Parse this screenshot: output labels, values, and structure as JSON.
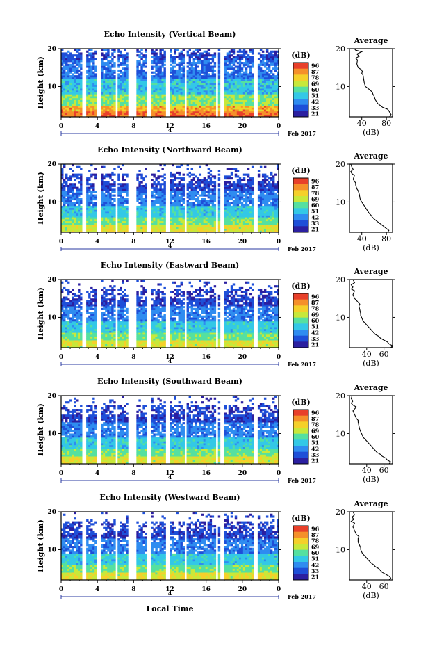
{
  "chart_data": {
    "type": "heatmap",
    "xlabel_shared": "Local Time",
    "date_label": "Feb 2017",
    "date_day": "4",
    "x_ticks": [
      "0",
      "4",
      "8",
      "12",
      "16",
      "20",
      "0"
    ],
    "y_ticks": [
      "10",
      "20"
    ],
    "ylabel": "Height (km)",
    "ylim": [
      2,
      20
    ],
    "xlim": [
      0,
      24
    ],
    "colorbar_unit": "(dB)",
    "avg_title": "Average",
    "avg_xlabel": "(dB)",
    "avg_y_ticks": [
      "10",
      "20"
    ],
    "colors": [
      "#2b1fa0",
      "#1e4fd8",
      "#2f8cf0",
      "#33c8e6",
      "#55e0a0",
      "#c8e83a",
      "#f5d02a",
      "#f5902a",
      "#e8402a"
    ],
    "data_gaps_hours": [
      [
        2.3,
        2.7
      ],
      [
        3.9,
        4.3
      ],
      [
        5.9,
        6.2
      ],
      [
        7.5,
        8.3
      ],
      [
        9.5,
        9.9
      ],
      [
        11.5,
        11.9
      ],
      [
        13.6,
        13.9
      ],
      [
        17.0,
        17.3
      ],
      [
        17.6,
        17.9
      ],
      [
        21.3,
        21.6
      ]
    ],
    "panels": [
      {
        "title": "Echo Intensity (Vertical Beam)",
        "cb_ticks": [
          "96",
          "87",
          "78",
          "69",
          "60",
          "51",
          "42",
          "33",
          "21"
        ],
        "avg_xticks": [
          "40",
          "80"
        ],
        "avg_xlim": [
          20,
          90
        ],
        "avg_profile": [
          [
            85,
            2
          ],
          [
            88,
            2.5
          ],
          [
            86,
            3
          ],
          [
            84,
            3.6
          ],
          [
            82,
            4
          ],
          [
            74,
            4.5
          ],
          [
            70,
            5
          ],
          [
            66,
            5.5
          ],
          [
            64,
            6
          ],
          [
            62,
            6.5
          ],
          [
            61,
            7
          ],
          [
            60,
            7.5
          ],
          [
            58,
            8
          ],
          [
            57,
            8.5
          ],
          [
            54,
            9
          ],
          [
            50,
            9.5
          ],
          [
            46,
            10
          ],
          [
            45,
            10.5
          ],
          [
            44,
            11
          ],
          [
            43,
            12
          ],
          [
            42,
            13
          ],
          [
            40,
            13.5
          ],
          [
            41,
            14
          ],
          [
            39,
            14.5
          ],
          [
            34,
            15
          ],
          [
            32,
            16
          ],
          [
            33,
            17
          ],
          [
            30,
            17.5
          ],
          [
            36,
            18
          ],
          [
            32,
            18.6
          ],
          [
            40,
            19.2
          ],
          [
            30,
            19.6
          ],
          [
            28,
            20
          ]
        ],
        "field": "vertical"
      },
      {
        "title": "Echo Intensity (Northward Beam)",
        "cb_ticks": [
          "96",
          "87",
          "78",
          "69",
          "60",
          "51",
          "42",
          "33",
          "21"
        ],
        "avg_xticks": [
          "40",
          "80"
        ],
        "avg_xlim": [
          20,
          90
        ],
        "avg_profile": [
          [
            82,
            2
          ],
          [
            84,
            2.5
          ],
          [
            80,
            3
          ],
          [
            76,
            3.5
          ],
          [
            72,
            4
          ],
          [
            68,
            4.5
          ],
          [
            64,
            5
          ],
          [
            60,
            5.5
          ],
          [
            57,
            6
          ],
          [
            55,
            6.5
          ],
          [
            52,
            7
          ],
          [
            50,
            7.5
          ],
          [
            48,
            8
          ],
          [
            46,
            8.5
          ],
          [
            44,
            9
          ],
          [
            42,
            9.5
          ],
          [
            40,
            10
          ],
          [
            38,
            10.5
          ],
          [
            37,
            11
          ],
          [
            36,
            12
          ],
          [
            34,
            13
          ],
          [
            32,
            13.5
          ],
          [
            31,
            14
          ],
          [
            30,
            14.5
          ],
          [
            30,
            15
          ],
          [
            26,
            16
          ],
          [
            28,
            17
          ],
          [
            24,
            17.5
          ],
          [
            22,
            18
          ],
          [
            26,
            18.6
          ],
          [
            24,
            19.2
          ],
          [
            22,
            20
          ]
        ],
        "field": "oblique"
      },
      {
        "title": "Echo Intensity (Eastward Beam)",
        "cb_ticks": [
          "96",
          "87",
          "78",
          "69",
          "60",
          "51",
          "42",
          "33",
          "21"
        ],
        "avg_xticks": [
          "40",
          "60"
        ],
        "avg_xlim": [
          20,
          70
        ],
        "avg_profile": [
          [
            68,
            2
          ],
          [
            70,
            2.5
          ],
          [
            66,
            3
          ],
          [
            64,
            3.5
          ],
          [
            60,
            4
          ],
          [
            56,
            4.5
          ],
          [
            54,
            5
          ],
          [
            50,
            5.5
          ],
          [
            48,
            6
          ],
          [
            46,
            6.5
          ],
          [
            44,
            7
          ],
          [
            42,
            7.5
          ],
          [
            40,
            8
          ],
          [
            38,
            8.5
          ],
          [
            36,
            9
          ],
          [
            35,
            9.5
          ],
          [
            34,
            10
          ],
          [
            33,
            10.5
          ],
          [
            33,
            11
          ],
          [
            32,
            12
          ],
          [
            31,
            13
          ],
          [
            32,
            13.5
          ],
          [
            30,
            14
          ],
          [
            28,
            14.5
          ],
          [
            26,
            15
          ],
          [
            24,
            16
          ],
          [
            26,
            17
          ],
          [
            22,
            17.5
          ],
          [
            24,
            18
          ],
          [
            22,
            18.6
          ],
          [
            26,
            19.2
          ],
          [
            24,
            20
          ]
        ],
        "field": "oblique"
      },
      {
        "title": "Echo Intensity (Southward Beam)",
        "cb_ticks": [
          "96",
          "87",
          "78",
          "69",
          "60",
          "51",
          "42",
          "33",
          "21"
        ],
        "avg_xticks": [
          "40",
          "60"
        ],
        "avg_xlim": [
          20,
          70
        ],
        "avg_profile": [
          [
            66,
            2
          ],
          [
            68,
            2.5
          ],
          [
            64,
            3
          ],
          [
            62,
            3.5
          ],
          [
            58,
            4
          ],
          [
            56,
            4.5
          ],
          [
            52,
            5
          ],
          [
            50,
            5.5
          ],
          [
            48,
            6
          ],
          [
            46,
            6.5
          ],
          [
            44,
            7
          ],
          [
            42,
            7.5
          ],
          [
            40,
            8
          ],
          [
            38,
            8.5
          ],
          [
            36,
            9
          ],
          [
            35,
            9.5
          ],
          [
            34,
            10
          ],
          [
            33,
            10.5
          ],
          [
            32,
            11
          ],
          [
            31,
            12
          ],
          [
            30,
            13
          ],
          [
            30,
            13.5
          ],
          [
            28,
            14
          ],
          [
            27,
            14.5
          ],
          [
            26,
            15
          ],
          [
            24,
            16
          ],
          [
            28,
            17
          ],
          [
            24,
            17.5
          ],
          [
            22,
            18
          ],
          [
            24,
            18.6
          ],
          [
            22,
            19.2
          ],
          [
            23,
            20
          ]
        ],
        "field": "oblique"
      },
      {
        "title": "Echo Intensity (Westward Beam)",
        "cb_ticks": [
          "96",
          "87",
          "78",
          "69",
          "60",
          "51",
          "42",
          "33",
          "21"
        ],
        "avg_xticks": [
          "40",
          "60"
        ],
        "avg_xlim": [
          20,
          70
        ],
        "avg_profile": [
          [
            66,
            2
          ],
          [
            68,
            2.5
          ],
          [
            66,
            3
          ],
          [
            62,
            3.5
          ],
          [
            58,
            4
          ],
          [
            56,
            4.5
          ],
          [
            54,
            5
          ],
          [
            50,
            5.5
          ],
          [
            48,
            6
          ],
          [
            45,
            6.5
          ],
          [
            43,
            7
          ],
          [
            41,
            7.5
          ],
          [
            39,
            8
          ],
          [
            37,
            8.5
          ],
          [
            35,
            9
          ],
          [
            34,
            9.5
          ],
          [
            33,
            10
          ],
          [
            33,
            10.5
          ],
          [
            32,
            11
          ],
          [
            30,
            12
          ],
          [
            30,
            13
          ],
          [
            31,
            13.5
          ],
          [
            28,
            14
          ],
          [
            27,
            14.5
          ],
          [
            26,
            15
          ],
          [
            24,
            16
          ],
          [
            26,
            17
          ],
          [
            22,
            17.5
          ],
          [
            25,
            18
          ],
          [
            23,
            18.6
          ],
          [
            26,
            19.2
          ],
          [
            24,
            20
          ]
        ],
        "field": "oblique"
      }
    ]
  }
}
